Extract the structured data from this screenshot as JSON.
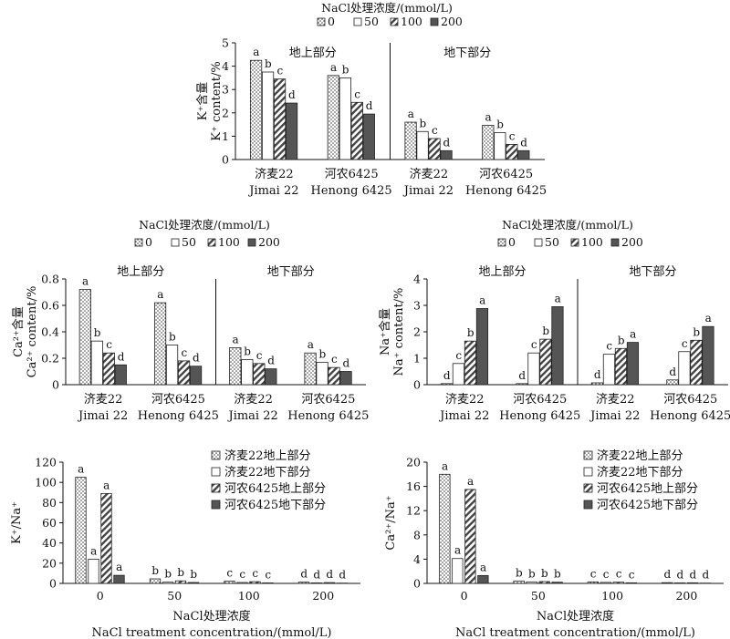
{
  "legend_title": "NaCl处理浓度/(mmol/L)",
  "treatments": [
    "0",
    "50",
    "100",
    "200"
  ],
  "cultivars": [
    {
      "zh": "济麦22",
      "en": "Jimai 22"
    },
    {
      "zh": "河农6425",
      "en": "Henong 6425"
    }
  ],
  "part_labels": [
    "地上部分",
    "地下部分"
  ],
  "ratio_series": [
    "济麦22地上部分",
    "济麦22地下部分",
    "河农6425地上部分",
    "河农6425地下部分"
  ],
  "x_title_zh": "NaCl处理浓度",
  "x_title_en": "NaCl treatment concentration/(mmol/L)",
  "colors": {
    "c0": "#ffffff",
    "c50": "#ffffff",
    "c100": "#cfcfcf",
    "c200": "#555555",
    "stroke": "#222222"
  },
  "chart_data": [
    {
      "type": "bar",
      "panel": "K+ content",
      "ylabel_zh": "K⁺含量",
      "ylabel_en": "K⁺ content/%",
      "ylim": [
        0,
        5
      ],
      "yticks": [
        0,
        1,
        2,
        3,
        4,
        5
      ],
      "groups": [
        "济麦22 地上部分",
        "河农6425 地上部分",
        "济麦22 地下部分",
        "河农6425 地下部分"
      ],
      "series": [
        {
          "name": "0",
          "values": [
            4.25,
            3.6,
            1.6,
            1.47
          ],
          "letters": [
            "a",
            "a",
            "a",
            "a"
          ]
        },
        {
          "name": "50",
          "values": [
            3.75,
            3.5,
            1.2,
            1.15
          ],
          "letters": [
            "b",
            "b",
            "b",
            "b"
          ]
        },
        {
          "name": "100",
          "values": [
            3.45,
            2.45,
            0.9,
            0.65
          ],
          "letters": [
            "c",
            "c",
            "c",
            "c"
          ]
        },
        {
          "name": "200",
          "values": [
            2.42,
            1.95,
            0.38,
            0.38
          ],
          "letters": [
            "d",
            "d",
            "d",
            "d"
          ]
        }
      ]
    },
    {
      "type": "bar",
      "panel": "Ca2+ content",
      "ylabel_zh": "Ca²⁺含量",
      "ylabel_en": "Ca²⁺ content/%",
      "ylim": [
        0,
        0.8
      ],
      "yticks": [
        0,
        0.2,
        0.4,
        0.6,
        0.8
      ],
      "groups": [
        "济麦22 地上部分",
        "河农6425 地上部分",
        "济麦22 地下部分",
        "河农6425 地下部分"
      ],
      "series": [
        {
          "name": "0",
          "values": [
            0.72,
            0.62,
            0.28,
            0.24
          ],
          "letters": [
            "a",
            "a",
            "a",
            "a"
          ]
        },
        {
          "name": "50",
          "values": [
            0.33,
            0.3,
            0.19,
            0.17
          ],
          "letters": [
            "b",
            "b",
            "b",
            "b"
          ]
        },
        {
          "name": "100",
          "values": [
            0.24,
            0.18,
            0.16,
            0.13
          ],
          "letters": [
            "c",
            "c",
            "c",
            "c"
          ]
        },
        {
          "name": "200",
          "values": [
            0.15,
            0.14,
            0.12,
            0.1
          ],
          "letters": [
            "d",
            "d",
            "d",
            "d"
          ]
        }
      ]
    },
    {
      "type": "bar",
      "panel": "Na+ content",
      "ylabel_zh": "Na⁺含量",
      "ylabel_en": "Na⁺ content/%",
      "ylim": [
        0,
        4
      ],
      "yticks": [
        0,
        1,
        2,
        3,
        4
      ],
      "groups": [
        "济麦22 地上部分",
        "河农6425 地上部分",
        "济麦22 地下部分",
        "河农6425 地下部分"
      ],
      "series": [
        {
          "name": "0",
          "values": [
            0.04,
            0.04,
            0.07,
            0.18
          ],
          "letters": [
            "d",
            "d",
            "d",
            "d"
          ]
        },
        {
          "name": "50",
          "values": [
            0.8,
            1.2,
            1.15,
            1.25
          ],
          "letters": [
            "c",
            "c",
            "c",
            "c"
          ]
        },
        {
          "name": "100",
          "values": [
            1.65,
            1.72,
            1.37,
            1.68
          ],
          "letters": [
            "b",
            "b",
            "b",
            "b"
          ]
        },
        {
          "name": "200",
          "values": [
            2.88,
            2.95,
            1.6,
            2.2
          ],
          "letters": [
            "a",
            "a",
            "a",
            "a"
          ]
        }
      ]
    },
    {
      "type": "bar",
      "panel": "K+/Na+",
      "ylabel": "K⁺/Na⁺",
      "ylim": [
        0,
        120
      ],
      "yticks": [
        0,
        20,
        40,
        60,
        80,
        100,
        120
      ],
      "categories": [
        "0",
        "50",
        "100",
        "200"
      ],
      "series": [
        {
          "name": "济麦22地上部分",
          "values": [
            105,
            4.5,
            2.2,
            1.2
          ],
          "letters": [
            "a",
            "b",
            "c",
            "d"
          ]
        },
        {
          "name": "济麦22地下部分",
          "values": [
            24,
            1.2,
            0.9,
            0.5
          ],
          "letters": [
            "a",
            "b",
            "c",
            "d"
          ]
        },
        {
          "name": "河农6425地上部分",
          "values": [
            89,
            2.5,
            1.7,
            0.8
          ],
          "letters": [
            "a",
            "b",
            "c",
            "d"
          ]
        },
        {
          "name": "河农6425地下部分",
          "values": [
            8,
            0.9,
            0.5,
            0.3
          ],
          "letters": [
            "a",
            "b",
            "c",
            "d"
          ]
        }
      ]
    },
    {
      "type": "bar",
      "panel": "Ca2+/Na+",
      "ylabel": "Ca²⁺/Na⁺",
      "ylim": [
        0,
        20
      ],
      "yticks": [
        0,
        4,
        8,
        12,
        16,
        20
      ],
      "categories": [
        "0",
        "50",
        "100",
        "200"
      ],
      "series": [
        {
          "name": "济麦22地上部分",
          "values": [
            18,
            0.4,
            0.25,
            0.12
          ],
          "letters": [
            "a",
            "b",
            "c",
            "d"
          ]
        },
        {
          "name": "济麦22地下部分",
          "values": [
            4.1,
            0.25,
            0.16,
            0.08
          ],
          "letters": [
            "a",
            "b",
            "c",
            "d"
          ]
        },
        {
          "name": "河农6425地上部分",
          "values": [
            15.5,
            0.3,
            0.2,
            0.1
          ],
          "letters": [
            "a",
            "b",
            "c",
            "d"
          ]
        },
        {
          "name": "河农6425地下部分",
          "values": [
            1.3,
            0.2,
            0.1,
            0.05
          ],
          "letters": [
            "a",
            "b",
            "c",
            "d"
          ]
        }
      ]
    }
  ]
}
